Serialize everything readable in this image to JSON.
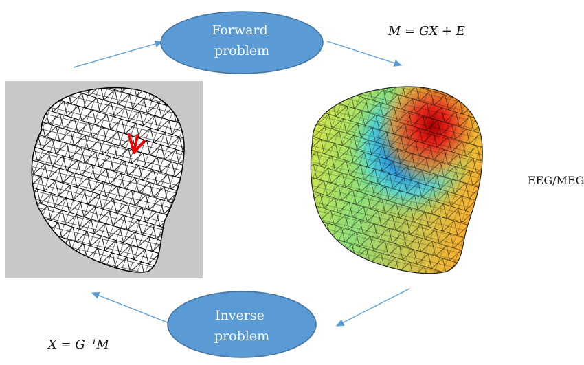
{
  "forward": {
    "lines": [
      "Forward",
      "problem"
    ]
  },
  "inverse": {
    "lines": [
      "Inverse",
      "problem"
    ]
  },
  "forward_equation": "M = GX + E",
  "measurement_label": "EEG/MEG",
  "inverse_equation": "X = G⁻¹M"
}
